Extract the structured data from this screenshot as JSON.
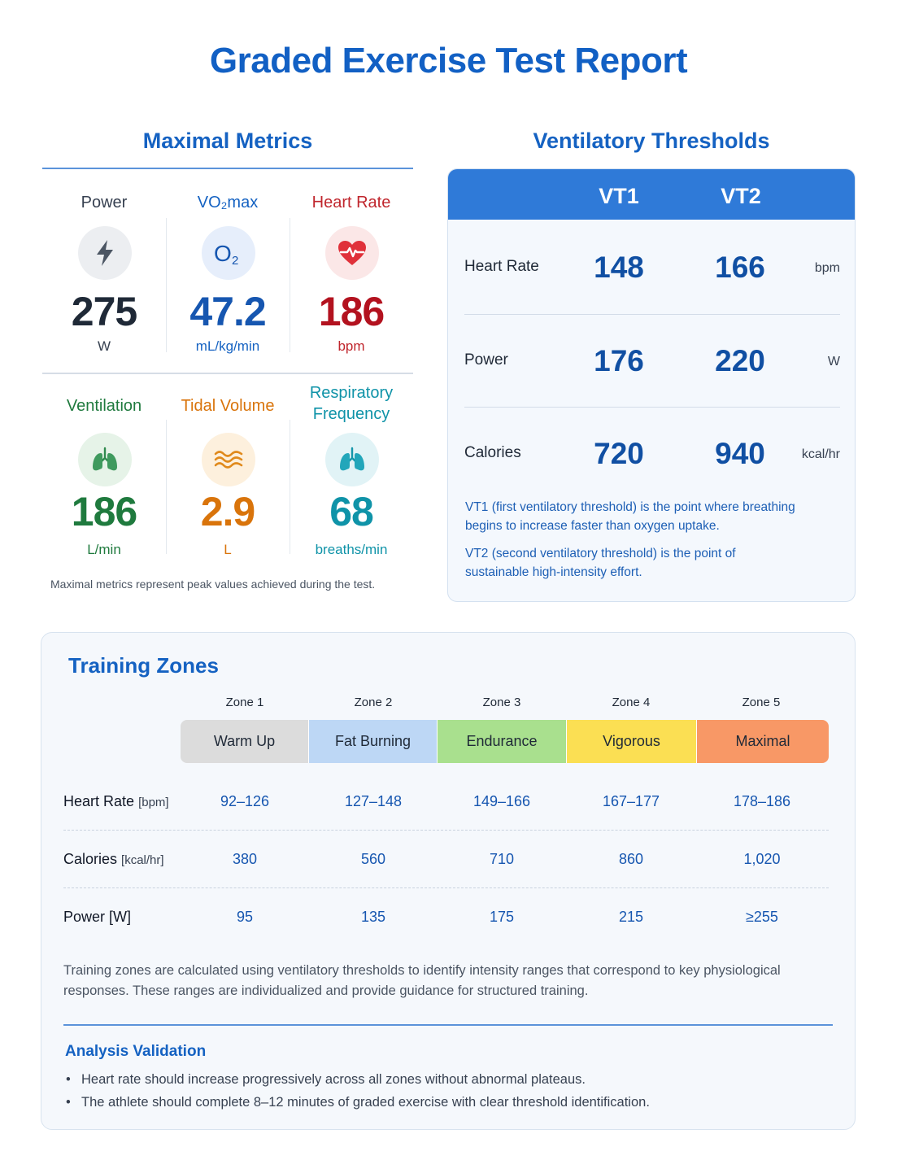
{
  "title": "Graded Exercise Test Report",
  "maximal_metrics": {
    "heading": "Maximal Metrics",
    "metrics": [
      {
        "label": "Power",
        "value": "275",
        "unit": "W",
        "icon": "lightning-bolt-icon",
        "color": "#1f2937",
        "label_color": "#374151",
        "bg": "#eceef1"
      },
      {
        "label": "VO₂max",
        "value": "47.2",
        "unit": "mL/kg/min",
        "icon": "oxygen-icon",
        "color": "#1656b0",
        "label_color": "#1562c2",
        "bg": "#e6eefb"
      },
      {
        "label": "Heart Rate",
        "value": "186",
        "unit": "bpm",
        "icon": "heart-pulse-icon",
        "color": "#b3121f",
        "label_color": "#c0262d",
        "bg": "#fbe7e7"
      },
      {
        "label": "Ventilation",
        "value": "186",
        "unit": "L/min",
        "icon": "lungs-icon",
        "color": "#1f7a3e",
        "label_color": "#1f7a3e",
        "bg": "#e6f3e8"
      },
      {
        "label": "Tidal Volume",
        "value": "2.9",
        "unit": "L",
        "icon": "waves-icon",
        "color": "#d9740b",
        "label_color": "#d9740b",
        "bg": "#fdf0dd"
      },
      {
        "label_line1": "Respiratory",
        "label_line2": "Frequency",
        "value": "68",
        "unit": "breaths/min",
        "icon": "lungs-icon",
        "color": "#0f93a8",
        "label_color": "#0f93a8",
        "bg": "#e1f3f6"
      }
    ],
    "note": "Maximal metrics represent peak values achieved during the test."
  },
  "ventilatory_thresholds": {
    "heading": "Ventilatory Thresholds",
    "columns": [
      "VT1",
      "VT2"
    ],
    "rows": [
      {
        "label": "Heart Rate",
        "vt1": "148",
        "vt2": "166",
        "unit": "bpm"
      },
      {
        "label": "Power",
        "vt1": "176",
        "vt2": "220",
        "unit": "W"
      },
      {
        "label": "Calories",
        "vt1": "720",
        "vt2": "940",
        "unit": "kcal/hr"
      }
    ],
    "notes": [
      "VT1 (first ventilatory threshold) is the point where breathing begins to increase faster than oxygen uptake.",
      "VT2 (second ventilatory threshold) is the point of sustainable high-intensity effort."
    ]
  },
  "training_zones": {
    "heading": "Training Zones",
    "zones": [
      {
        "zone": "Zone 1",
        "name": "Warm Up",
        "color": "#dcdcdc"
      },
      {
        "zone": "Zone 2",
        "name": "Fat Burning",
        "color": "#bdd7f5"
      },
      {
        "zone": "Zone 3",
        "name": "Endurance",
        "color": "#a9e08e"
      },
      {
        "zone": "Zone 4",
        "name": "Vigorous",
        "color": "#fbdf53"
      },
      {
        "zone": "Zone 5",
        "name": "Maximal",
        "color": "#f89866"
      }
    ],
    "rows": [
      {
        "label": "Heart Rate",
        "unit": "[bpm]",
        "values": [
          "92–126",
          "127–148",
          "149–166",
          "167–177",
          "178–186"
        ]
      },
      {
        "label": "Calories",
        "unit": "[kcal/hr]",
        "values": [
          "380",
          "560",
          "710",
          "860",
          "1,020"
        ]
      },
      {
        "label": "Power [W]",
        "unit": "",
        "values": [
          "95",
          "135",
          "175",
          "215",
          "≥255"
        ]
      }
    ],
    "description": "Training zones are calculated using ventilatory thresholds to identify intensity ranges that correspond to key physiological responses. These ranges are individualized and provide guidance for structured training.",
    "validation": {
      "heading": "Analysis Validation",
      "items": [
        "Heart rate should increase progressively across all zones without abnormal plateaus.",
        "The athlete should complete 8–12 minutes of graded exercise with clear threshold identification."
      ]
    }
  }
}
